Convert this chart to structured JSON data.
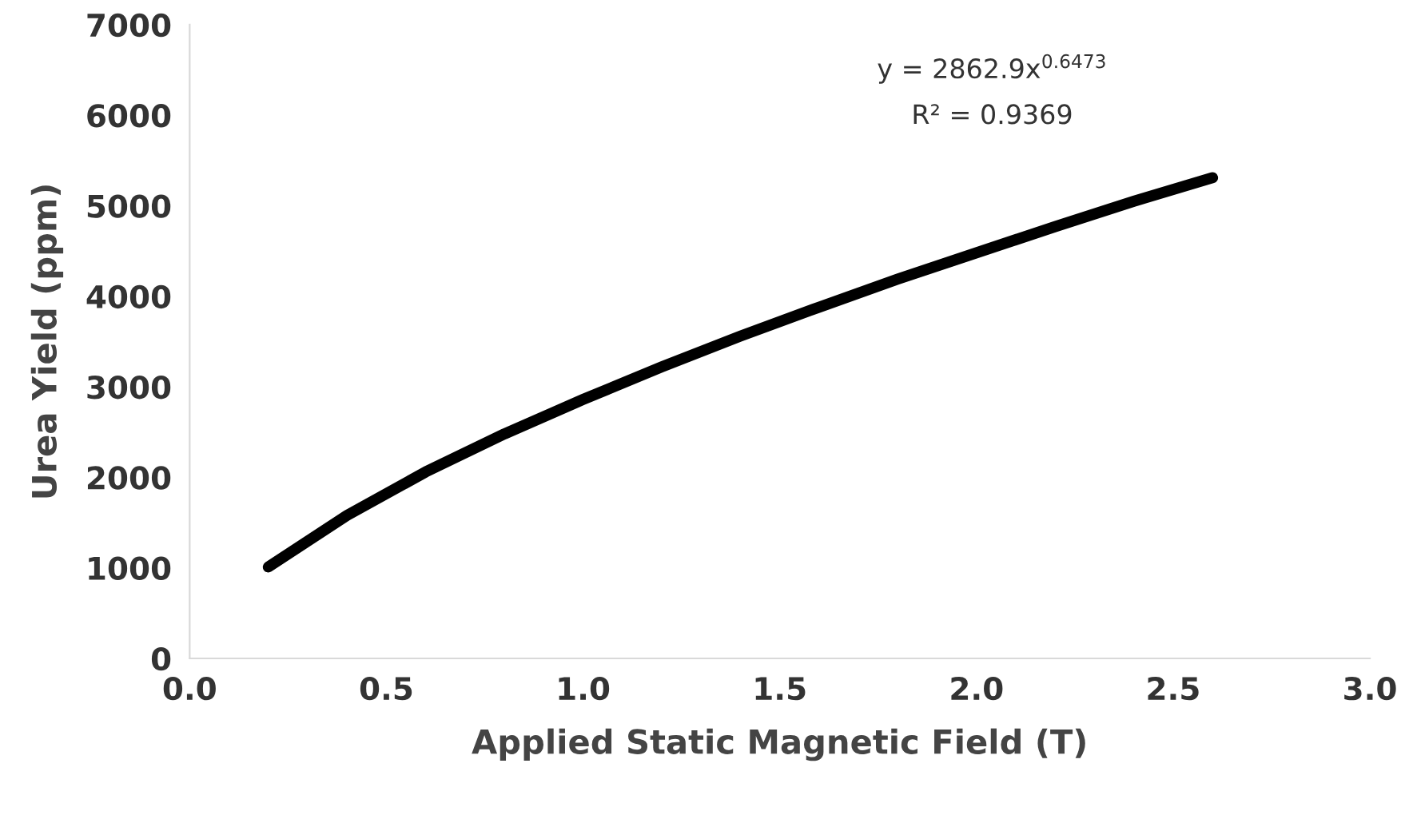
{
  "chart_data": {
    "type": "line",
    "xlabel": "Applied Static Magnetic Field (T)",
    "ylabel": "Urea Yield (ppm)",
    "x": [
      0.2,
      0.4,
      0.6,
      0.8,
      1.0,
      1.2,
      1.4,
      1.6,
      1.8,
      2.0,
      2.2,
      2.4,
      2.6
    ],
    "series": [
      {
        "color": "#000000",
        "values": [
          1010,
          1580,
          2060,
          2480,
          2860,
          3220,
          3560,
          3880,
          4190,
          4480,
          4770,
          5050,
          5310
        ]
      }
    ],
    "xlim": [
      0.0,
      3.0
    ],
    "xticks": [
      {
        "value": 0.0,
        "label": "0.0"
      },
      0.5,
      {
        "value": 1.0,
        "label": "1.0"
      },
      1.5,
      {
        "value": 2.0,
        "label": "2.0"
      },
      2.5,
      {
        "value": 3.0,
        "label": "3.0"
      }
    ],
    "ylim": [
      0,
      7000
    ],
    "yticks": [
      0,
      1000,
      2000,
      3000,
      4000,
      5000,
      6000,
      7000
    ],
    "grid": false,
    "marker": "none",
    "line_style": "solid",
    "annotations": [
      "y = 2862.9x$^{0.6473}$",
      "R² = 0.9369"
    ]
  }
}
